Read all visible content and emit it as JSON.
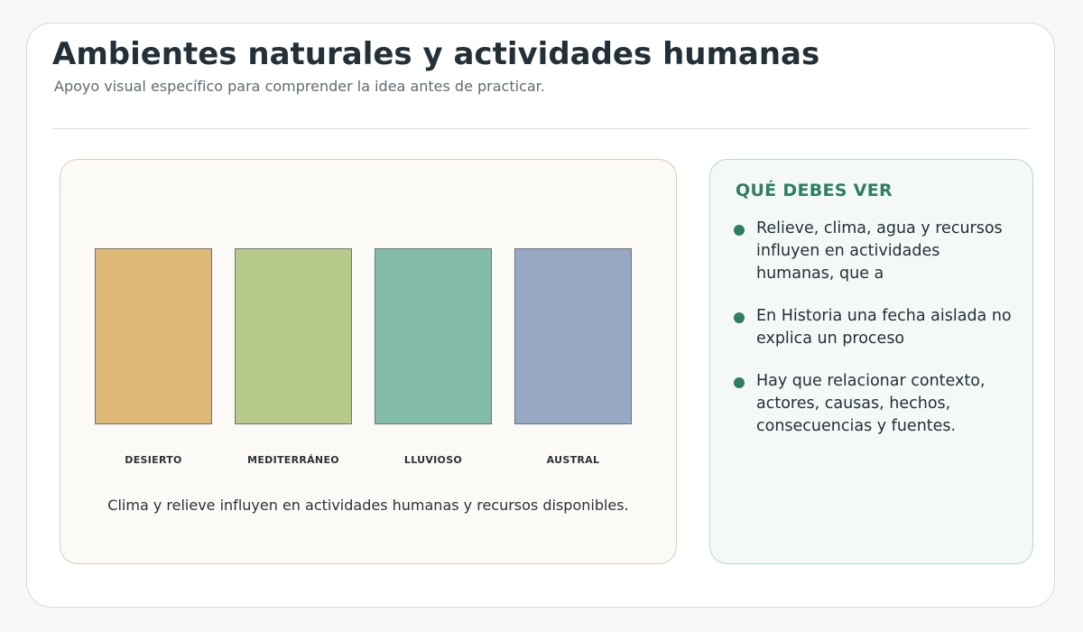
{
  "header": {
    "title": "Ambientes naturales y actividades humanas",
    "subtitle": "Apoyo visual específico para comprender la idea antes de practicar."
  },
  "illustration": {
    "items": [
      {
        "label": "DESIERTO"
      },
      {
        "label": "MEDITERRÁNEO"
      },
      {
        "label": "LLUVIOSO"
      },
      {
        "label": "AUSTRAL"
      }
    ],
    "caption": "Clima y relieve influyen en actividades humanas y recursos disponibles."
  },
  "sidebar": {
    "title": "QUÉ DEBES VER",
    "bullets": [
      "Relieve, clima, agua y recursos influyen en actividades humanas, que a",
      "En Historia una fecha aislada no explica un proceso",
      "Hay que relacionar contexto, actores, causas, hechos, consecuencias y fuentes."
    ]
  }
}
